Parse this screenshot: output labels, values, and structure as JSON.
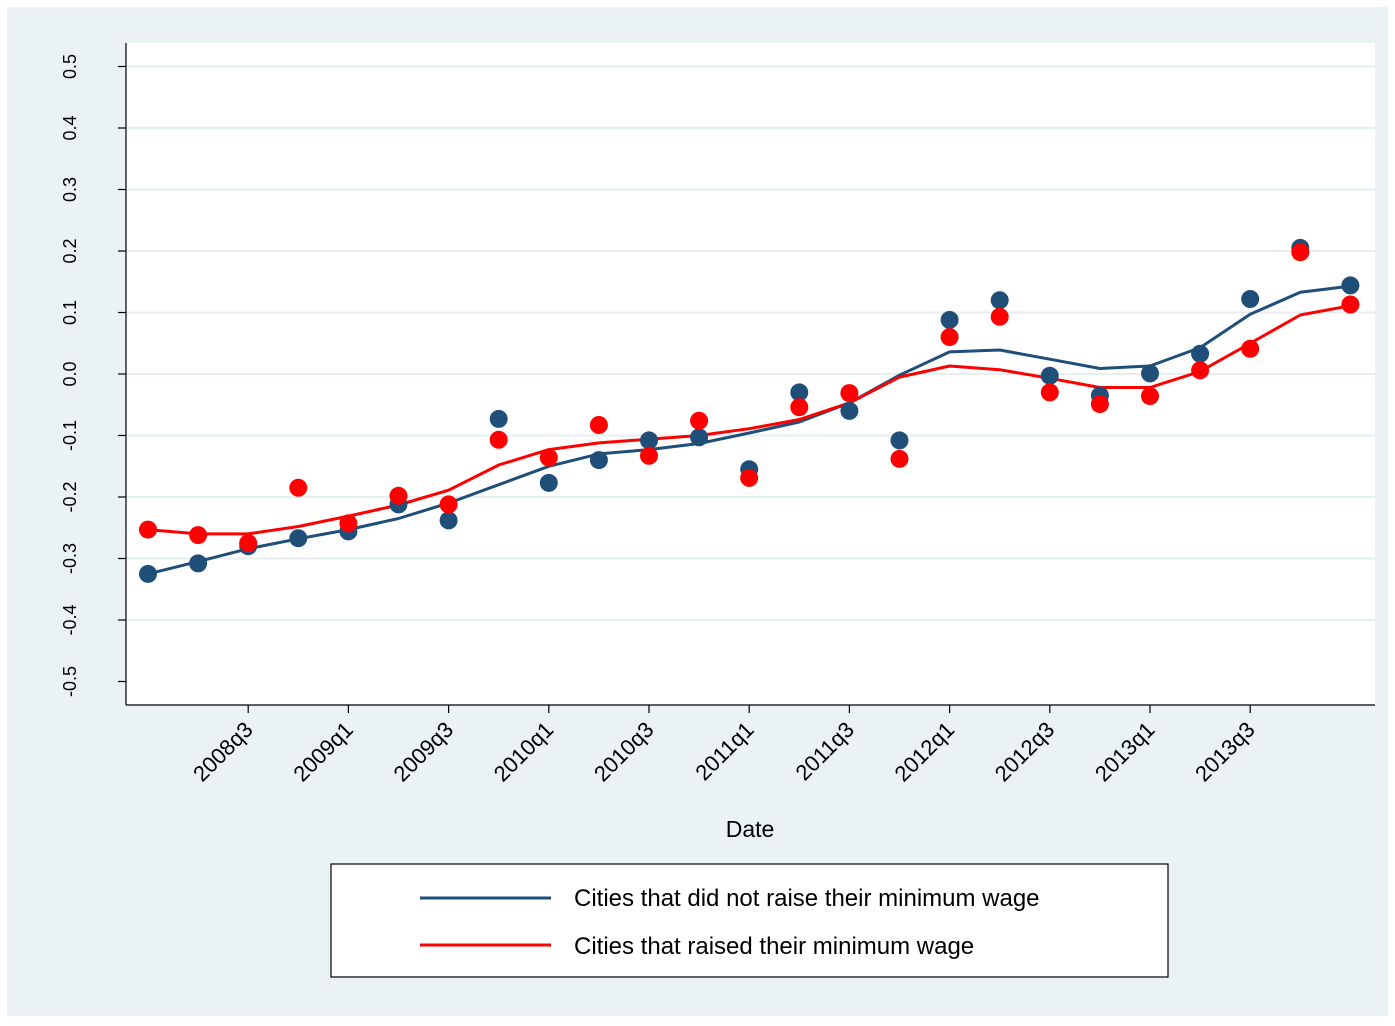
{
  "chart_data": {
    "type": "line",
    "title": "",
    "xlabel": "Date",
    "ylabel": "",
    "ylim": [
      -0.5,
      0.5
    ],
    "y_ticks": [
      "-0.5",
      "-0.4",
      "-0.3",
      "-0.2",
      "-0.1",
      "0.0",
      "0.1",
      "0.2",
      "0.3",
      "0.4",
      "0.5"
    ],
    "y_tick_values": [
      -0.5,
      -0.4,
      -0.3,
      -0.2,
      -0.1,
      0.0,
      0.1,
      0.2,
      0.3,
      0.4,
      0.5
    ],
    "categories": [
      "2008q1",
      "2008q2",
      "2008q3",
      "2008q4",
      "2009q1",
      "2009q2",
      "2009q3",
      "2009q4",
      "2010q1",
      "2010q2",
      "2010q3",
      "2010q4",
      "2011q1",
      "2011q2",
      "2011q3",
      "2011q4",
      "2012q1",
      "2012q2",
      "2012q3",
      "2012q4",
      "2013q1",
      "2013q2",
      "2013q3",
      "2013q4",
      "2014q1"
    ],
    "x_tick_labels": [
      "2008q3",
      "2009q1",
      "2009q3",
      "2010q1",
      "2010q3",
      "2011q1",
      "2011q3",
      "2012q1",
      "2012q3",
      "2013q1",
      "2013q3"
    ],
    "x_tick_indices": [
      2,
      4,
      6,
      8,
      10,
      12,
      14,
      16,
      18,
      20,
      22
    ],
    "grid": true,
    "legend_position": "bottom",
    "series": [
      {
        "name": "Cities that did not raise their minimum wage",
        "color": "#1f4e79",
        "points": [
          -0.325,
          -0.308,
          -0.28,
          -0.267,
          -0.256,
          -0.212,
          -0.238,
          -0.073,
          -0.177,
          -0.14,
          -0.108,
          -0.103,
          -0.155,
          -0.03,
          -0.06,
          -0.108,
          0.088,
          0.12,
          -0.003,
          -0.035,
          0.001,
          0.033,
          0.122,
          0.205,
          0.144
        ],
        "line": [
          -0.325,
          -0.305,
          -0.284,
          -0.268,
          -0.253,
          -0.235,
          -0.21,
          -0.18,
          -0.15,
          -0.13,
          -0.123,
          -0.113,
          -0.096,
          -0.078,
          -0.047,
          -0.002,
          0.036,
          0.039,
          0.024,
          0.009,
          0.013,
          0.043,
          0.097,
          0.133,
          0.143
        ]
      },
      {
        "name": "Cities that raised their minimum wage",
        "color": "#ff0000",
        "points": [
          -0.253,
          -0.262,
          -0.275,
          -0.185,
          -0.243,
          -0.198,
          -0.212,
          -0.107,
          -0.136,
          -0.083,
          -0.133,
          -0.076,
          -0.169,
          -0.054,
          -0.031,
          -0.138,
          0.06,
          0.093,
          -0.03,
          -0.049,
          -0.036,
          0.006,
          0.041,
          0.198,
          0.113
        ],
        "line": [
          -0.253,
          -0.26,
          -0.26,
          -0.248,
          -0.231,
          -0.213,
          -0.189,
          -0.148,
          -0.123,
          -0.112,
          -0.106,
          -0.1,
          -0.089,
          -0.074,
          -0.047,
          -0.005,
          0.013,
          0.007,
          -0.007,
          -0.022,
          -0.022,
          0.004,
          0.05,
          0.096,
          0.111
        ]
      }
    ]
  }
}
